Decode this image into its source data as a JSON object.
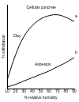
{
  "chart_data": {
    "type": "line",
    "x_label": "% relative humidity",
    "y_label": "% withdrawal",
    "x": [
      10,
      20,
      30,
      40,
      50,
      60,
      70,
      80,
      90
    ],
    "series": [
      {
        "color": "#000000",
        "values": [
          1.0,
          4.0,
          6.2,
          7.5,
          8.3,
          8.7,
          8.8,
          8.5,
          8.0
        ]
      },
      {
        "color": "#000000",
        "values": [
          0.2,
          0.5,
          0.9,
          1.3,
          1.7,
          2.1,
          2.6,
          3.1,
          3.7
        ]
      }
    ],
    "xlim": [
      10,
      90
    ],
    "xticks": [
      10,
      20,
      30,
      40,
      50,
      60,
      70,
      80,
      90
    ],
    "ylim": [
      0,
      10
    ],
    "tick_labels": "x",
    "grid": false,
    "annotations": [
      {
        "text": "Cellular concrete",
        "x": 32,
        "y": 9.7
      },
      {
        "text": "Clay",
        "x": 16,
        "y": 6.3
      },
      {
        "text": "Asbestos",
        "x": 42,
        "y": 2.9
      },
      {
        "text": "a",
        "x": 90,
        "y": 8.6
      },
      {
        "text": "b",
        "x": 90,
        "y": 4.3
      }
    ]
  }
}
